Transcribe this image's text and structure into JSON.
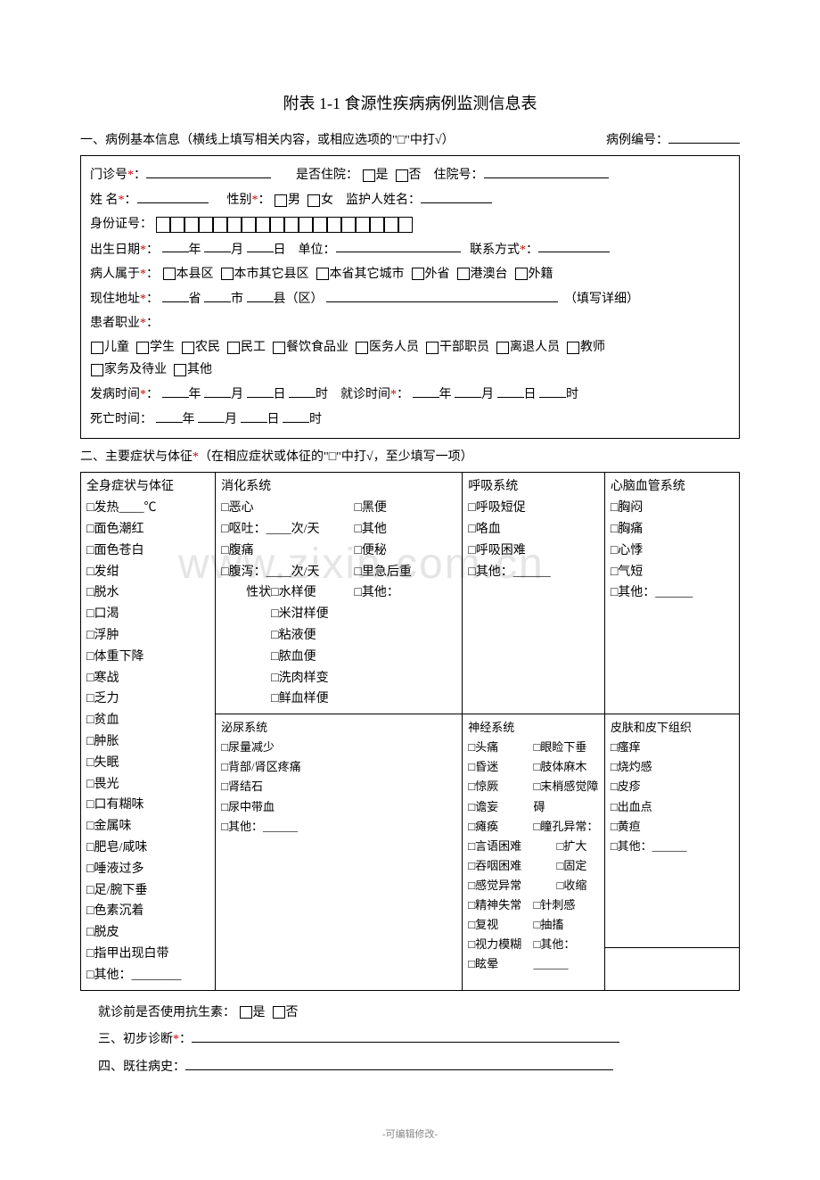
{
  "title": "附表 1-1  食源性疾病病例监测信息表",
  "section1": {
    "header": "一、病例基本信息（横线上填写相关内容，或相应选项的\"□\"中打√）",
    "caseNoLabel": "病例编号：",
    "outpatient": "门诊号*：",
    "hospitalized": "是否住院：",
    "yes": "是",
    "no": "否",
    "hospNo": "住院号：",
    "name": "姓  名*：",
    "gender": "性别*：",
    "male": "男",
    "female": "女",
    "guardian": "监护人姓名：",
    "idno": "身份证号：",
    "birth": "出生日期*：",
    "year": "年",
    "month": "月",
    "day": "日",
    "unit": "单位：",
    "contact": "联系方式*：",
    "belong": "病人属于*：",
    "belongOpts": [
      "本县区",
      "本市其它县区",
      "本省其它城市",
      "外省",
      "港澳台",
      "外籍"
    ],
    "addr": "现住地址*：",
    "prov": "省",
    "city": "市",
    "county": "县（区）",
    "addrNote": "（填写详细）",
    "occ": "患者职业*：",
    "occOpts": [
      "儿童",
      "学生",
      "农民",
      "民工",
      "餐饮食品业",
      "医务人员",
      "干部职员",
      "离退人员",
      "教师",
      "家务及待业",
      "其他"
    ],
    "onset": "发病时间*：",
    "hour": "时",
    "visit": "就诊时间*：",
    "death": "死亡时间："
  },
  "section2": {
    "header": "二、主要症状与体征*（在相应症状或体征的\"□\"中打√，至少填写一项）",
    "col1h": "全身症状与体征",
    "col2h": "消化系统",
    "col3h": "呼吸系统",
    "col4h": "心脑血管系统",
    "col1": [
      "□发热____℃",
      "□面色潮红",
      "□面色苍白",
      "□发绀",
      "□脱水",
      "□口渴",
      "□浮肿",
      "□体重下降",
      "□寒战",
      "□乏力",
      "□贫血",
      "□肿胀",
      "□失眠",
      "□畏光",
      "□口有糊味",
      "□金属味",
      "□肥皂/咸味",
      "□唾液过多",
      "□足/腕下垂",
      "□色素沉着",
      "□脱皮",
      "□指甲出现白带",
      "□其他：________"
    ],
    "col2a": [
      "□恶心",
      "□呕吐：____次/天",
      "□腹痛",
      "□腹泻：____次/天",
      "　　性状□水样便",
      "　　　　□米泔样便",
      "　　　　□粘液便",
      "　　　　□脓血便",
      "　　　　□洗肉样变",
      "　　　　□鲜血样便"
    ],
    "col2a_r": [
      "□黑便",
      "□其他",
      "□便秘",
      "□里急后重",
      "□其他："
    ],
    "col3a": [
      "□呼吸短促",
      "□咯血",
      "□呼吸困难",
      "□其他：______"
    ],
    "col4a": [
      "□胸闷",
      "□胸痛",
      "□心悸",
      "□气短",
      "□其他：______"
    ],
    "col2bh": "泌尿系统",
    "col2b": [
      "□尿量减少",
      "□背部/肾区疼痛",
      "□肾结石",
      "□尿中带血",
      "□其他：______"
    ],
    "col2ch": "神经系统",
    "col2c_l": [
      "□头痛",
      "□昏迷",
      "□惊厥",
      "□谵妄",
      "□瘫痪",
      "□言语困难",
      "□吞咽困难",
      "□感觉异常",
      "□精神失常",
      "□复视",
      "□视力模糊",
      "□眩晕"
    ],
    "col2c_r": [
      "□眼睑下垂",
      "□肢体麻木",
      "□末梢感觉障碍",
      "□瞳孔异常：",
      "　　□扩大",
      "　　□固定",
      "　　□收缩",
      "□针刺感",
      "□抽搐",
      "□其他：______"
    ],
    "col4bh": "皮肤和皮下组织",
    "col4b": [
      "□瘙痒",
      "□烧灼感",
      "□皮疹",
      "□出血点",
      "□黄疸",
      "□其他：______"
    ]
  },
  "antibiotic": {
    "label": "就诊前是否使用抗生素：",
    "yes": "是",
    "no": "否"
  },
  "section3": "三、初步诊断*：",
  "section4": "四、既往病史：",
  "footer": "-可编辑修改-",
  "watermark": "www.zixin.com.cn"
}
